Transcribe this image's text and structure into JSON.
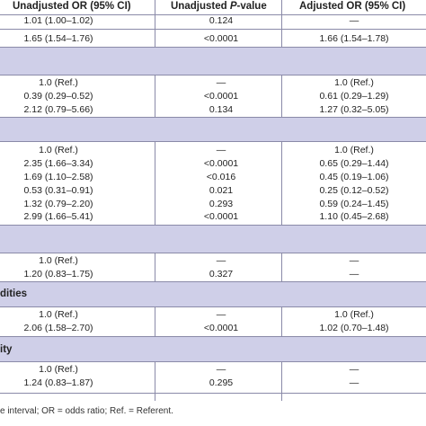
{
  "header": {
    "col_or": "Unadjusted OR (95% CI)",
    "col_p_prefix": "Unadjusted ",
    "col_p_italic": "P",
    "col_p_suffix": "-value",
    "col_adj": "Adjusted OR (95% CI)"
  },
  "top_rows": [
    {
      "or": "1.01 (1.00–1.02)",
      "p": "0.124",
      "adj": "—"
    },
    {
      "or": "1.65 (1.54–1.76)",
      "p": "<0.0001",
      "adj": "1.66 (1.54–1.78)"
    }
  ],
  "group2": [
    {
      "or": "1.0 (Ref.)",
      "p": "—",
      "adj": "1.0 (Ref.)"
    },
    {
      "or": "0.39 (0.29–0.52)",
      "p": "<0.0001",
      "adj": "0.61 (0.29–1.29)"
    },
    {
      "or": "2.12 (0.79–5.66)",
      "p": "0.134",
      "adj": "1.27 (0.32–5.05)"
    }
  ],
  "group3": [
    {
      "or": "1.0 (Ref.)",
      "p": "—",
      "adj": "1.0 (Ref.)"
    },
    {
      "or": "2.35 (1.66–3.34)",
      "p": "<0.0001",
      "adj": "0.65 (0.29–1.44)"
    },
    {
      "or": "1.69 (1.10–2.58)",
      "p": "<0.016",
      "adj": "0.45 (0.19–1.06)"
    },
    {
      "or": "0.53 (0.31–0.91)",
      "p": "0.021",
      "adj": "0.25 (0.12–0.52)"
    },
    {
      "or": "1.32 (0.79–2.20)",
      "p": "0.293",
      "adj": "0.59 (0.24–1.45)"
    },
    {
      "or": "2.99 (1.66–5.41)",
      "p": "<0.0001",
      "adj": "1.10 (0.45–2.68)"
    }
  ],
  "group4": [
    {
      "or": "1.0 (Ref.)",
      "p": "—",
      "adj": "—"
    },
    {
      "or": "1.20 (0.83–1.75)",
      "p": "0.327",
      "adj": "—"
    }
  ],
  "band5_label": "dities",
  "group5": [
    {
      "or": "1.0 (Ref.)",
      "p": "—",
      "adj": "1.0 (Ref.)"
    },
    {
      "or": "2.06 (1.58–2.70)",
      "p": "<0.0001",
      "adj": "1.02 (0.70–1.48)"
    }
  ],
  "band6_label": "ity",
  "group6": [
    {
      "or": "1.0 (Ref.)",
      "p": "—",
      "adj": "—"
    },
    {
      "or": "1.24 (0.83–1.87)",
      "p": "0.295",
      "adj": "—"
    }
  ],
  "footnote": "e interval; OR = odds ratio; Ref. = Referent."
}
